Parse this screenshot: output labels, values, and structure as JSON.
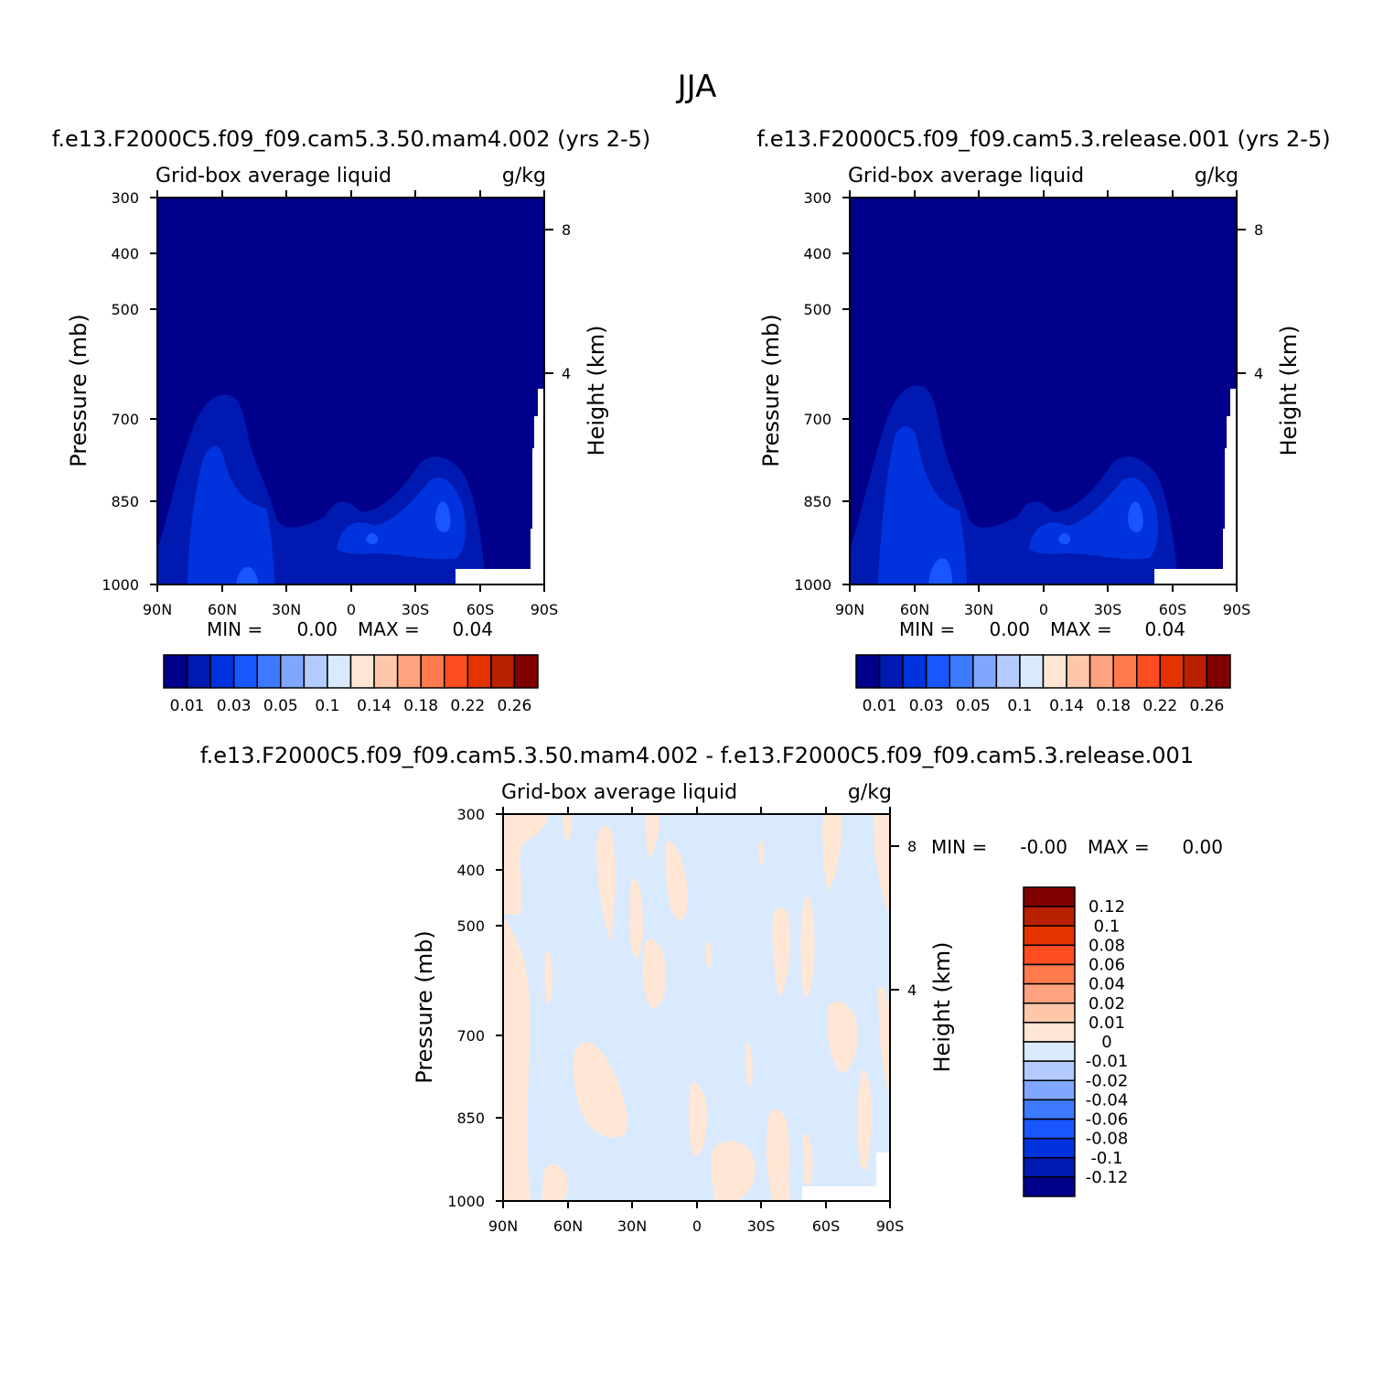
{
  "figure": {
    "title": "JJA"
  },
  "chart_data": [
    {
      "type": "heatmap",
      "id": "panel1",
      "title": "f.e13.F2000C5.f09_f09.cam5.3.50.mam4.002 (yrs 2-5)",
      "variable": "Grid-box average liquid",
      "units": "g/kg",
      "ylabel": "Pressure (mb)",
      "y2label": "Height (km)",
      "x_ticks": [
        "90N",
        "60N",
        "30N",
        "0",
        "30S",
        "60S",
        "90S"
      ],
      "y_ticks": [
        "300",
        "400",
        "500",
        "700",
        "850",
        "1000"
      ],
      "y2_ticks": [
        "8",
        "4"
      ],
      "min_label": "MIN =",
      "min_value": "0.00",
      "max_label": "MAX =",
      "max_value": "0.04",
      "colorbar": {
        "orientation": "horizontal",
        "colors": [
          "#00008b",
          "#0019b0",
          "#0033dd",
          "#1a56ff",
          "#3d7aff",
          "#7fa7ff",
          "#b3cbff",
          "#d9eaff",
          "#ffe6d5",
          "#ffc7aa",
          "#ffa27f",
          "#ff7a4d",
          "#ff4d1f",
          "#e53300",
          "#b82000",
          "#800000"
        ],
        "labels": [
          "0.01",
          "0.03",
          "0.05",
          "0.1",
          "0.14",
          "0.18",
          "0.22",
          "0.26"
        ]
      }
    },
    {
      "type": "heatmap",
      "id": "panel2",
      "title": "f.e13.F2000C5.f09_f09.cam5.3.release.001 (yrs 2-5)",
      "variable": "Grid-box average liquid",
      "units": "g/kg",
      "ylabel": "Pressure (mb)",
      "y2label": "Height (km)",
      "x_ticks": [
        "90N",
        "60N",
        "30N",
        "0",
        "30S",
        "60S",
        "90S"
      ],
      "y_ticks": [
        "300",
        "400",
        "500",
        "700",
        "850",
        "1000"
      ],
      "y2_ticks": [
        "8",
        "4"
      ],
      "min_label": "MIN =",
      "min_value": "0.00",
      "max_label": "MAX =",
      "max_value": "0.04",
      "colorbar": {
        "orientation": "horizontal",
        "colors": [
          "#00008b",
          "#0019b0",
          "#0033dd",
          "#1a56ff",
          "#3d7aff",
          "#7fa7ff",
          "#b3cbff",
          "#d9eaff",
          "#ffe6d5",
          "#ffc7aa",
          "#ffa27f",
          "#ff7a4d",
          "#ff4d1f",
          "#e53300",
          "#b82000",
          "#800000"
        ],
        "labels": [
          "0.01",
          "0.03",
          "0.05",
          "0.1",
          "0.14",
          "0.18",
          "0.22",
          "0.26"
        ]
      }
    },
    {
      "type": "heatmap",
      "id": "panel3",
      "title": "f.e13.F2000C5.f09_f09.cam5.3.50.mam4.002 - f.e13.F2000C5.f09_f09.cam5.3.release.001",
      "variable": "Grid-box average liquid",
      "units": "g/kg",
      "ylabel": "Pressure (mb)",
      "y2label": "Height (km)",
      "x_ticks": [
        "90N",
        "60N",
        "30N",
        "0",
        "30S",
        "60S",
        "90S"
      ],
      "y_ticks": [
        "300",
        "400",
        "500",
        "700",
        "850",
        "1000"
      ],
      "y2_ticks": [
        "8",
        "4"
      ],
      "min_label": "MIN =",
      "min_value": "-0.00",
      "max_label": "MAX =",
      "max_value": "0.00",
      "colorbar": {
        "orientation": "vertical",
        "colors": [
          "#800000",
          "#b82000",
          "#e53300",
          "#ff4d1f",
          "#ff7a4d",
          "#ffa27f",
          "#ffc7aa",
          "#ffe6d5",
          "#d9eaff",
          "#b3cbff",
          "#7fa7ff",
          "#3d7aff",
          "#1a56ff",
          "#0033dd",
          "#0019b0",
          "#00008b"
        ],
        "labels": [
          "0.12",
          "0.1",
          "0.08",
          "0.06",
          "0.04",
          "0.02",
          "0.01",
          "0",
          "-0.01",
          "-0.02",
          "-0.04",
          "-0.06",
          "-0.08",
          "-0.1",
          "-0.12"
        ]
      }
    }
  ]
}
